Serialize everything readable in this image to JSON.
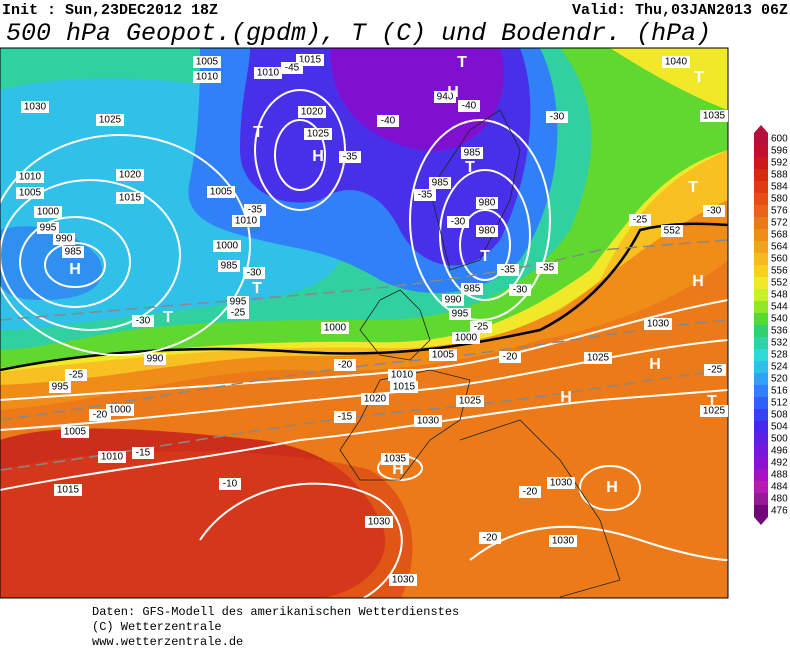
{
  "header": {
    "init": "Init : Sun,23DEC2012 18Z",
    "valid": "Valid: Thu,03JAN2013 06Z",
    "title": "500 hPa Geopot.(gpdm), T (C) und Bodendr. (hPa)"
  },
  "colorbar": {
    "values": [
      600,
      596,
      592,
      588,
      584,
      580,
      576,
      572,
      568,
      564,
      560,
      556,
      552,
      548,
      544,
      540,
      536,
      532,
      528,
      524,
      520,
      516,
      512,
      508,
      504,
      500,
      496,
      492,
      488,
      484,
      480,
      476
    ],
    "colors": [
      "#b4103c",
      "#c01030",
      "#cc1818",
      "#d42a10",
      "#dc3c10",
      "#e45010",
      "#e86418",
      "#ec7818",
      "#f08c18",
      "#f4a020",
      "#f8b820",
      "#f8d020",
      "#f0e828",
      "#c8f028",
      "#90e828",
      "#50dc30",
      "#30d070",
      "#30d0a8",
      "#30d8d8",
      "#30c0f0",
      "#30a0f8",
      "#3080f8",
      "#3060f8",
      "#3840f0",
      "#4828e8",
      "#6020e0",
      "#7818d8",
      "#9010d0",
      "#a810c8",
      "#b818b8",
      "#981898",
      "#700878"
    ]
  },
  "map_labels": [
    "1005",
    "1010",
    "1015",
    "1010",
    "-45",
    "1030",
    "1025",
    "1020",
    "1025",
    "H",
    "T",
    "-35",
    "-40",
    "940",
    "H",
    "T",
    "-40",
    "985",
    "T",
    "985",
    "-35",
    "980",
    "-30",
    "980",
    "T",
    "-35",
    "-35",
    "-30",
    "985",
    "990",
    "995",
    "-25",
    "1000",
    "1005",
    "-20",
    "-30",
    "1040",
    "T",
    "1035",
    "T",
    "-30",
    "-25",
    "552",
    "H",
    "1030",
    "1025",
    "H",
    "-25",
    "H",
    "1025",
    "T",
    "1010",
    "1005",
    "1000",
    "995",
    "990",
    "985",
    "H",
    "1020",
    "1015",
    "1005",
    "1010",
    "-35",
    "1000",
    "985",
    "-30",
    "T",
    "995",
    "-25",
    "T",
    "-30",
    "1000",
    "990",
    "-25",
    "995",
    "1000",
    "-20",
    "1005",
    "1010",
    "-15",
    "1015",
    "-10",
    "1010",
    "1015",
    "-20",
    "1020",
    "1025",
    "-15",
    "1030",
    "1035",
    "H",
    "1030",
    "1030",
    "1030",
    "H",
    "-20",
    "-20",
    "1030"
  ],
  "footer": [
    "Daten: GFS-Modell des amerikanischen Wetterdienstes",
    "(C) Wetterzentrale",
    "www.wetterzentrale.de"
  ]
}
